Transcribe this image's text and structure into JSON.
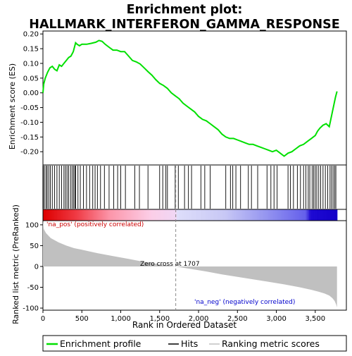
{
  "chart_data": {
    "type": "line",
    "title_lines": [
      "Enrichment plot:",
      "HALLMARK_INTERFERON_GAMMA_RESPONSE"
    ],
    "es_ylabel": "Enrichment score (ES)",
    "metric_ylabel": "Ranked list metric (PreRanked)",
    "xlabel": "Rank in Ordered Dataset",
    "xlim": [
      0,
      3900
    ],
    "x_ticks": [
      0,
      500,
      1000,
      1500,
      2000,
      2500,
      3000,
      3500
    ],
    "x_tick_labels": [
      "0",
      "500",
      "1,000",
      "1,500",
      "2,000",
      "2,500",
      "3,000",
      "3,500"
    ],
    "es_ylim": [
      -0.245,
      0.21
    ],
    "es_ticks": [
      0.2,
      0.15,
      0.1,
      0.05,
      0.0,
      -0.05,
      -0.1,
      -0.15,
      -0.2
    ],
    "es_tick_labels": [
      "0.20",
      "0.15",
      "0.10",
      "0.05",
      "0.00",
      "-0.05",
      "-0.10",
      "-0.15",
      "-0.20"
    ],
    "metric_ylim": [
      -105,
      110
    ],
    "metric_ticks": [
      100,
      50,
      0,
      -50,
      -100
    ],
    "metric_tick_labels": [
      "100",
      "50",
      "0",
      "-50",
      "-100"
    ],
    "zero_cross_rank": 1707,
    "total_ranks": 3780,
    "annotations": {
      "pos": "'na_pos' (positively correlated)",
      "zero_cross": "Zero cross at 1707",
      "neg": "'na_neg' (negatively correlated)"
    },
    "legend": [
      "Enrichment profile",
      "Hits",
      "Ranking metric scores"
    ],
    "colors": {
      "enrichment": "#00e000",
      "hits": "#000000",
      "metric": "#c0c0c0",
      "bar_pos_strong": "#dd0000",
      "bar_neg_strong": "#1a00d0"
    },
    "enrichment_profile": {
      "x": [
        0,
        10,
        30,
        60,
        90,
        120,
        150,
        180,
        210,
        240,
        270,
        300,
        330,
        360,
        390,
        420,
        440,
        470,
        500,
        560,
        620,
        680,
        720,
        760,
        800,
        850,
        900,
        950,
        1000,
        1050,
        1100,
        1150,
        1200,
        1250,
        1300,
        1350,
        1400,
        1450,
        1500,
        1550,
        1600,
        1650,
        1700,
        1750,
        1800,
        1850,
        1900,
        1950,
        2000,
        2050,
        2100,
        2150,
        2200,
        2250,
        2300,
        2350,
        2400,
        2450,
        2500,
        2550,
        2600,
        2650,
        2700,
        2750,
        2800,
        2850,
        2900,
        2950,
        3000,
        3050,
        3100,
        3150,
        3200,
        3250,
        3300,
        3350,
        3400,
        3450,
        3500,
        3530,
        3560,
        3600,
        3640,
        3680,
        3700,
        3720,
        3740,
        3760,
        3780
      ],
      "es": [
        0.0,
        0.03,
        0.05,
        0.07,
        0.085,
        0.09,
        0.08,
        0.075,
        0.095,
        0.09,
        0.1,
        0.11,
        0.12,
        0.125,
        0.14,
        0.17,
        0.165,
        0.16,
        0.165,
        0.165,
        0.168,
        0.172,
        0.178,
        0.175,
        0.165,
        0.155,
        0.145,
        0.145,
        0.14,
        0.14,
        0.125,
        0.11,
        0.105,
        0.098,
        0.085,
        0.072,
        0.06,
        0.045,
        0.032,
        0.025,
        0.015,
        0.0,
        -0.01,
        -0.02,
        -0.035,
        -0.045,
        -0.055,
        -0.065,
        -0.08,
        -0.09,
        -0.095,
        -0.105,
        -0.115,
        -0.125,
        -0.14,
        -0.15,
        -0.155,
        -0.155,
        -0.16,
        -0.165,
        -0.17,
        -0.175,
        -0.175,
        -0.18,
        -0.185,
        -0.19,
        -0.195,
        -0.2,
        -0.195,
        -0.205,
        -0.215,
        -0.205,
        -0.2,
        -0.19,
        -0.18,
        -0.175,
        -0.165,
        -0.155,
        -0.145,
        -0.13,
        -0.12,
        -0.11,
        -0.105,
        -0.115,
        -0.09,
        -0.065,
        -0.04,
        -0.015,
        0.005
      ]
    },
    "hit_ranks": [
      5,
      20,
      40,
      55,
      75,
      95,
      120,
      150,
      180,
      210,
      240,
      270,
      290,
      310,
      330,
      355,
      375,
      395,
      410,
      420,
      450,
      480,
      520,
      560,
      600,
      640,
      670,
      700,
      740,
      790,
      850,
      910,
      960,
      1000,
      1060,
      1180,
      1240,
      1350,
      1500,
      1540,
      1580,
      1600,
      1700,
      1740,
      1820,
      1870,
      1910,
      2030,
      2080,
      2150,
      2350,
      2410,
      2440,
      2480,
      2540,
      2640,
      2680,
      2760,
      2880,
      2930,
      2970,
      3010,
      3150,
      3180,
      3220,
      3270,
      3310,
      3350,
      3380,
      3410,
      3430,
      3460,
      3480,
      3500,
      3520,
      3545,
      3570,
      3600,
      3630,
      3660,
      3690,
      3710,
      3730,
      3750,
      3765
    ],
    "metric_profile": {
      "x": [
        0,
        10,
        40,
        100,
        200,
        300,
        400,
        500,
        700,
        900,
        1100,
        1300,
        1500,
        1707,
        1900,
        2100,
        2300,
        2500,
        2700,
        2900,
        3100,
        3300,
        3450,
        3550,
        3620,
        3680,
        3720,
        3750,
        3770,
        3780
      ],
      "y": [
        110,
        90,
        80,
        68,
        58,
        50,
        44,
        40,
        32,
        25,
        18,
        11,
        5,
        0,
        -6,
        -12,
        -19,
        -25,
        -31,
        -37,
        -43,
        -50,
        -56,
        -61,
        -65,
        -70,
        -76,
        -83,
        -92,
        -98
      ]
    }
  }
}
